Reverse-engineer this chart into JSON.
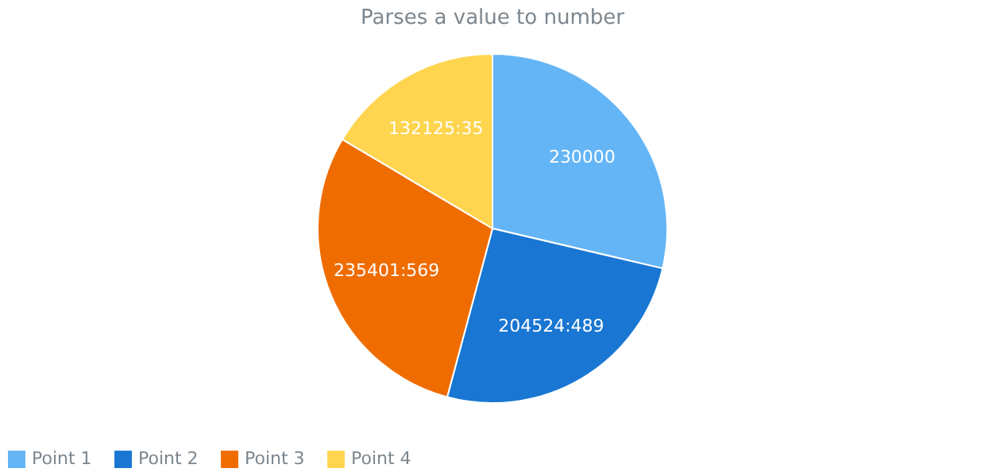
{
  "chart_data": {
    "type": "pie",
    "title": "Parses a value to number",
    "categories": [
      "Point 1",
      "Point 2",
      "Point 3",
      "Point 4"
    ],
    "values": [
      230000,
      204524.489,
      235401.569,
      132125.35
    ],
    "value_labels": [
      "230000",
      "204524:489",
      "235401:569",
      "132125:35"
    ],
    "colors": [
      "#64b5f6",
      "#1976d2",
      "#ef6c00",
      "#ffd54f"
    ],
    "legend": "bottom"
  }
}
